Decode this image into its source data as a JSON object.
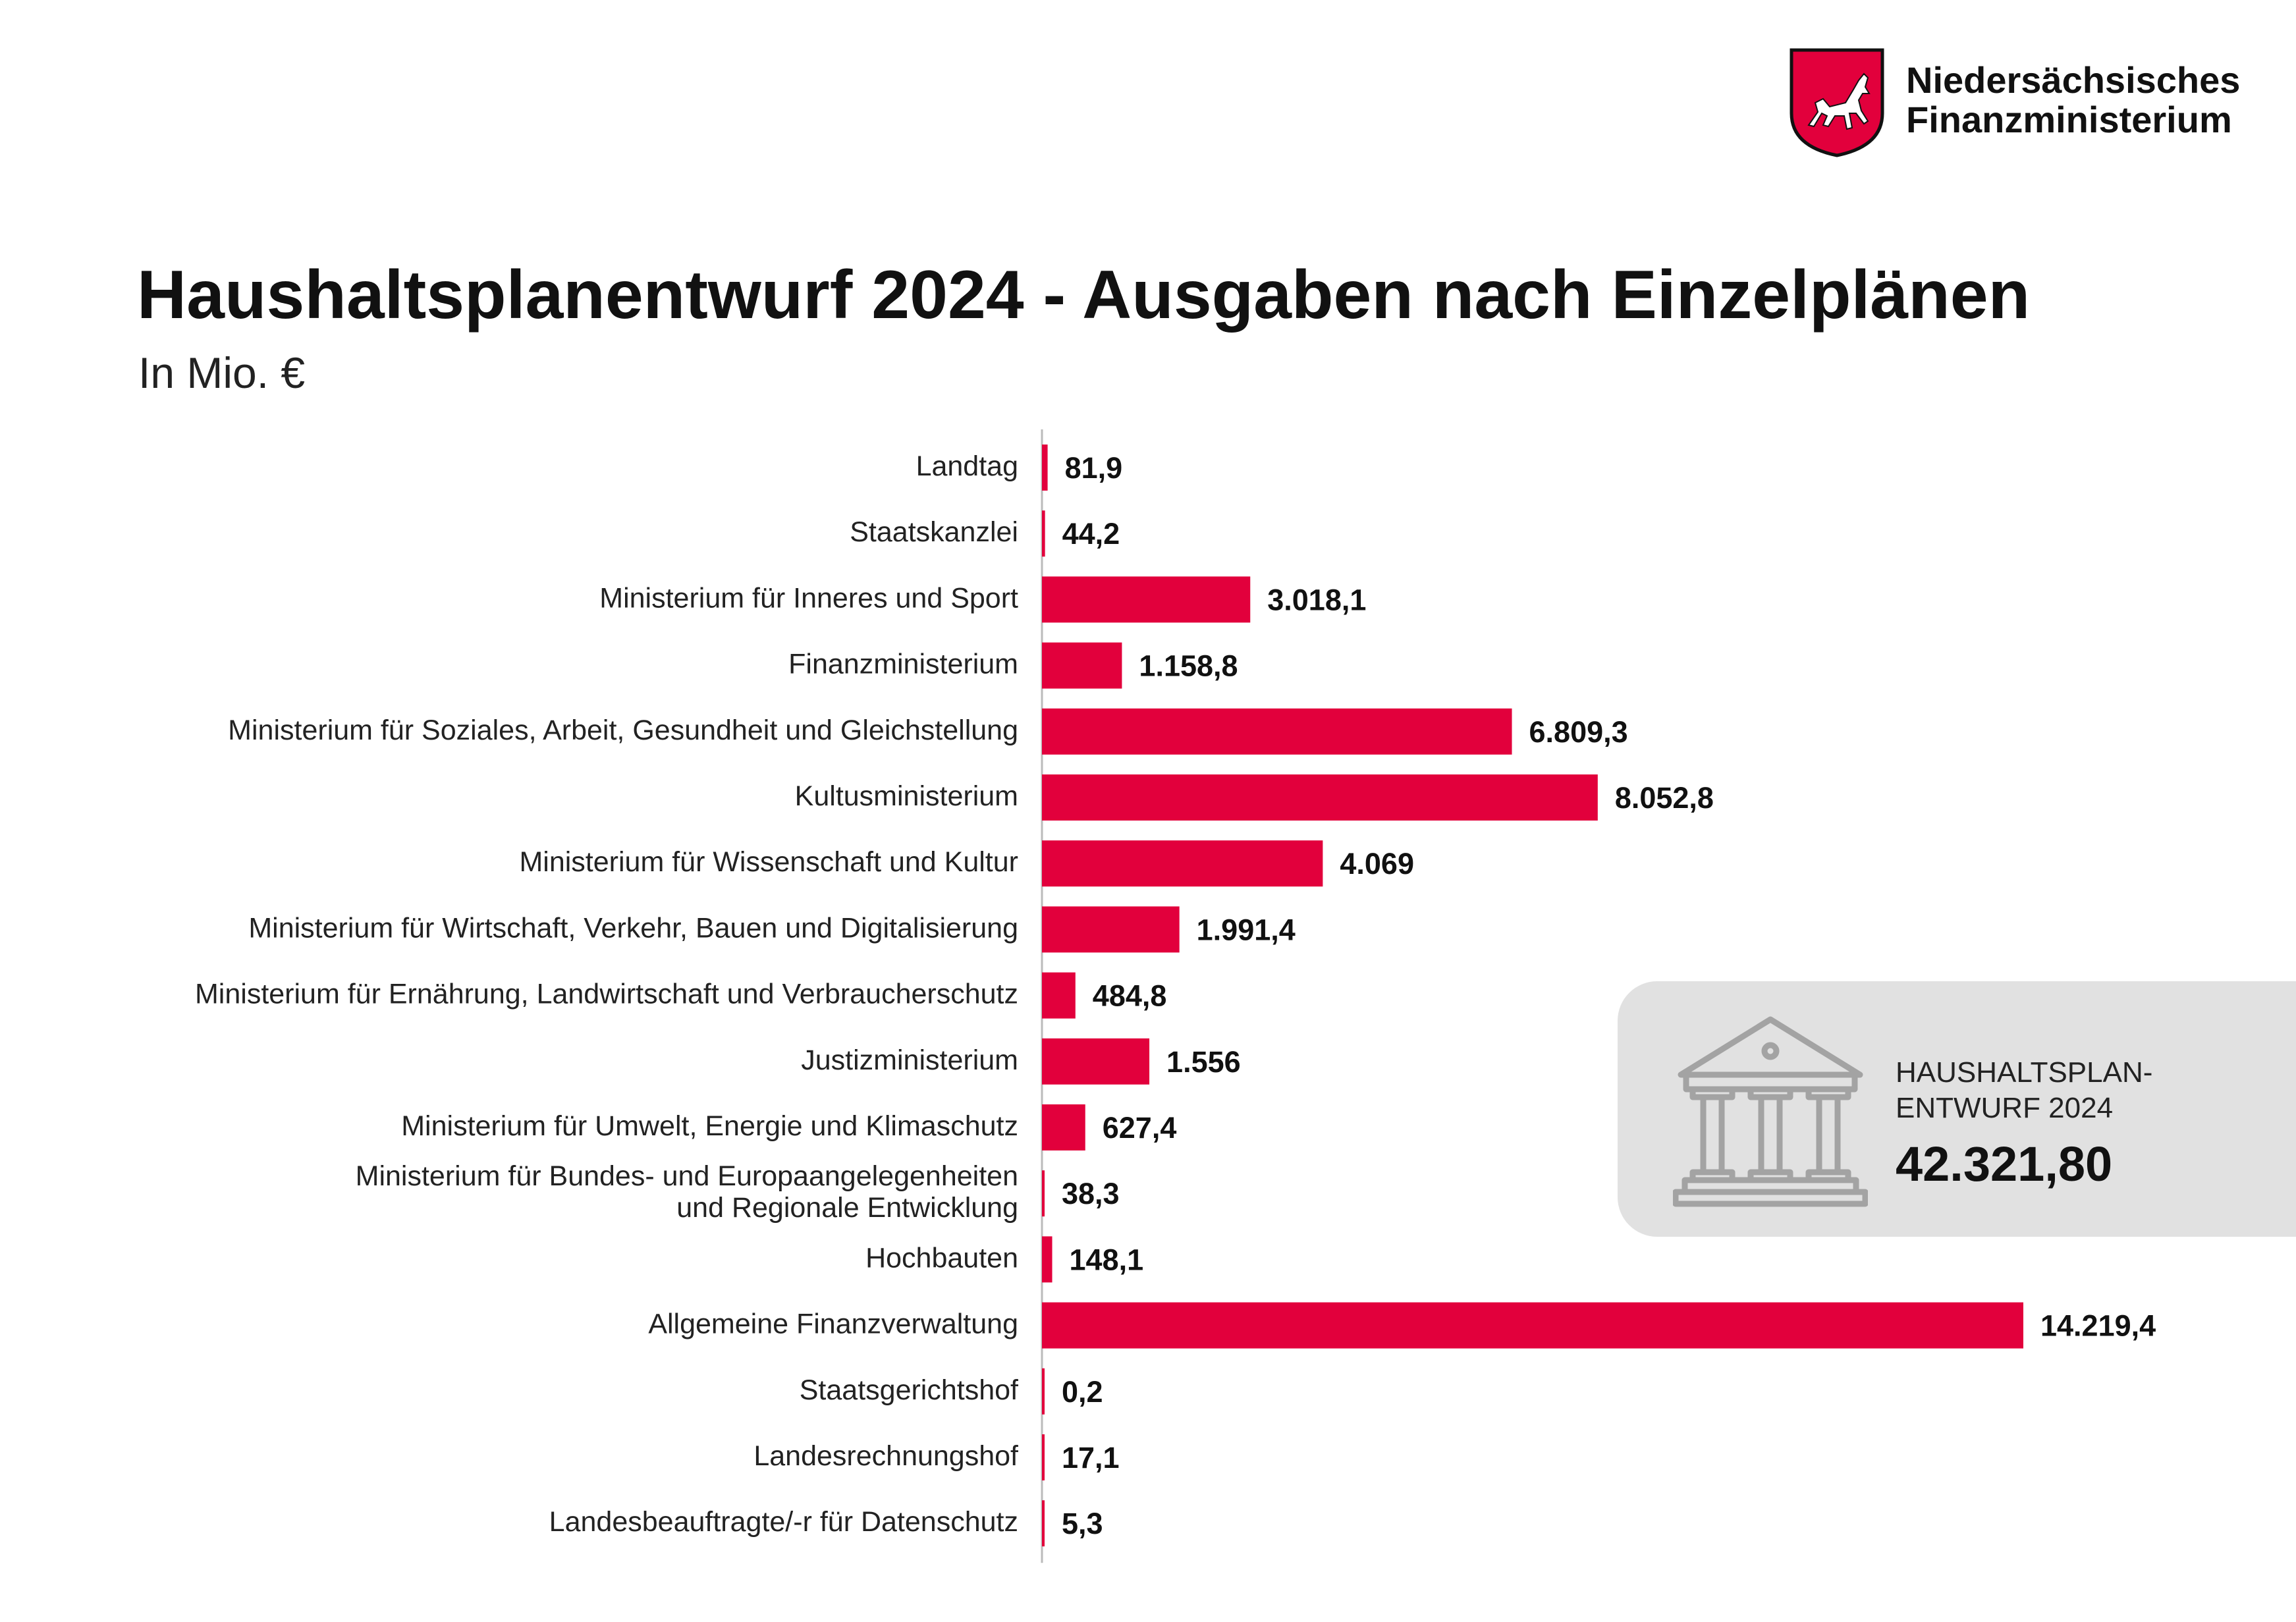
{
  "brand": {
    "line1": "Niedersächsisches",
    "line2": "Finanzministerium",
    "logo": "lower-saxony-horse-shield-logo"
  },
  "title": "Haushaltsplanentwurf 2024 - Ausgaben nach Einzelplänen",
  "subtitle": "In Mio. €",
  "colors": {
    "bar": "#e2003c",
    "box_background": "#e1e1e1",
    "icon": "#a3a3a3",
    "axis": "#bbbbbb"
  },
  "total_box": {
    "label_line1": "HAUSHALTSPLAN-",
    "label_line2": "ENTWURF 2024",
    "value": "42.321,80",
    "icon": "government-building-icon"
  },
  "chart_data": {
    "type": "bar",
    "orientation": "horizontal",
    "title": "Haushaltsplanentwurf 2024 - Ausgaben nach Einzelplänen",
    "subtitle": "In Mio. €",
    "xlabel": "",
    "ylabel": "",
    "grid": false,
    "categories": [
      [
        "Landtag"
      ],
      [
        "Staatskanzlei"
      ],
      [
        "Ministerium für Inneres und Sport"
      ],
      [
        "Finanzministerium"
      ],
      [
        "Ministerium für Soziales, Arbeit, Gesundheit und Gleichstellung"
      ],
      [
        "Kultusministerium"
      ],
      [
        "Ministerium für Wissenschaft und Kultur"
      ],
      [
        "Ministerium für Wirtschaft, Verkehr, Bauen und Digitalisierung"
      ],
      [
        "Ministerium für Ernährung, Landwirtschaft und Verbraucherschutz"
      ],
      [
        "Justizministerium"
      ],
      [
        "Ministerium für Umwelt, Energie und Klimaschutz"
      ],
      [
        "Ministerium für Bundes- und Europaangelegenheiten",
        "und Regionale Entwicklung"
      ],
      [
        "Hochbauten"
      ],
      [
        "Allgemeine Finanzverwaltung"
      ],
      [
        "Staatsgerichtshof"
      ],
      [
        "Landesrechnungshof"
      ],
      [
        "Landesbeauftragte/-r für Datenschutz"
      ]
    ],
    "values": [
      81.9,
      44.2,
      3018.1,
      1158.8,
      6809.3,
      8052.8,
      4069,
      1991.4,
      484.8,
      1556,
      627.4,
      38.3,
      148.1,
      14219.4,
      0.2,
      17.1,
      5.3
    ],
    "value_labels": [
      "81,9",
      "44,2",
      "3.018,1",
      "1.158,8",
      "6.809,3",
      "8.052,8",
      "4.069",
      "1.991,4",
      "484,8",
      "1.556",
      "627,4",
      "38,3",
      "148,1",
      "14.219,4",
      "0,2",
      "17,1",
      "5,3"
    ],
    "xlim": [
      0,
      14219.4
    ]
  }
}
